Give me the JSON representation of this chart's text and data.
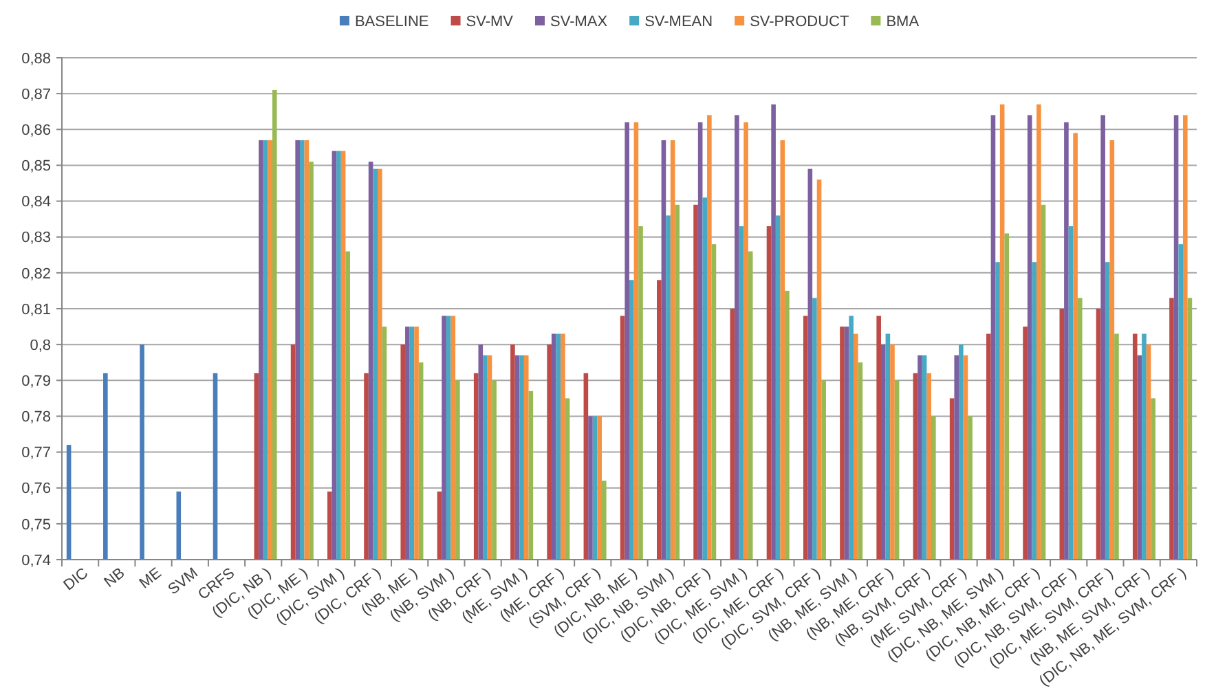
{
  "chart_data": {
    "type": "bar",
    "categories": [
      "DIC",
      "NB",
      "ME",
      "SVM",
      "CRFS",
      "(DIC, NB )",
      "(DIC, ME )",
      "(DIC, SVM )",
      "(DIC, CRF )",
      "(NB, ME )",
      "(NB, SVM )",
      "(NB, CRF )",
      "(ME, SVM )",
      "(ME, CRF )",
      "(SVM, CRF )",
      "(DIC, NB, ME )",
      "(DIC, NB, SVM )",
      "(DIC, NB, CRF )",
      "(DIC, ME, SVM )",
      "(DIC, ME, CRF )",
      "(DIC, SVM, CRF )",
      "(NB, ME, SVM )",
      "(NB, ME, CRF )",
      "(NB, SVM, CRF )",
      "(ME, SVM, CRF )",
      "(DIC, NB, ME, SVM )",
      "(DIC, NB, ME, CRF )",
      "(DIC, NB, SVM, CRF )",
      "(DIC, ME, SVM, CRF )",
      "(NB, ME, SVM, CRF )",
      "(DIC, NB, ME, SVM, CRF )"
    ],
    "series": [
      {
        "name": "BASELINE",
        "color": "#4a7ebb",
        "values": [
          0.772,
          0.792,
          0.8,
          0.759,
          0.792,
          null,
          null,
          null,
          null,
          null,
          null,
          null,
          null,
          null,
          null,
          null,
          null,
          null,
          null,
          null,
          null,
          null,
          null,
          null,
          null,
          null,
          null,
          null,
          null,
          null,
          null
        ]
      },
      {
        "name": "SV-MV",
        "color": "#be4b48",
        "values": [
          null,
          null,
          null,
          null,
          null,
          0.792,
          0.8,
          0.759,
          0.792,
          0.8,
          0.759,
          0.792,
          0.8,
          0.8,
          0.792,
          0.808,
          0.818,
          0.839,
          0.81,
          0.833,
          0.808,
          0.805,
          0.808,
          0.792,
          0.785,
          0.803,
          0.805,
          0.81,
          0.81,
          0.803,
          0.813
        ]
      },
      {
        "name": "SV-MAX",
        "color": "#7d60a0",
        "values": [
          null,
          null,
          null,
          null,
          null,
          0.857,
          0.857,
          0.854,
          0.851,
          0.805,
          0.808,
          0.8,
          0.797,
          0.803,
          0.78,
          0.862,
          0.857,
          0.862,
          0.864,
          0.867,
          0.849,
          0.805,
          0.8,
          0.797,
          0.797,
          0.864,
          0.864,
          0.862,
          0.864,
          0.797,
          0.864
        ]
      },
      {
        "name": "SV-MEAN",
        "color": "#46aac5",
        "values": [
          null,
          null,
          null,
          null,
          null,
          0.857,
          0.857,
          0.854,
          0.849,
          0.805,
          0.808,
          0.797,
          0.797,
          0.803,
          0.78,
          0.818,
          0.836,
          0.841,
          0.833,
          0.836,
          0.813,
          0.808,
          0.803,
          0.797,
          0.8,
          0.823,
          0.823,
          0.833,
          0.823,
          0.803,
          0.828
        ]
      },
      {
        "name": "SV-PRODUCT",
        "color": "#f69240",
        "values": [
          null,
          null,
          null,
          null,
          null,
          0.857,
          0.857,
          0.854,
          0.849,
          0.805,
          0.808,
          0.797,
          0.797,
          0.803,
          0.78,
          0.862,
          0.857,
          0.864,
          0.862,
          0.857,
          0.846,
          0.803,
          0.8,
          0.792,
          0.797,
          0.867,
          0.867,
          0.859,
          0.857,
          0.8,
          0.864
        ]
      },
      {
        "name": "BMA",
        "color": "#98b954",
        "values": [
          null,
          null,
          null,
          null,
          null,
          0.871,
          0.851,
          0.826,
          0.805,
          0.795,
          0.79,
          0.79,
          0.787,
          0.785,
          0.762,
          0.833,
          0.839,
          0.828,
          0.826,
          0.815,
          0.79,
          0.795,
          0.79,
          0.78,
          0.78,
          0.831,
          0.839,
          0.813,
          0.803,
          0.785,
          0.813
        ]
      }
    ],
    "ylim": [
      0.74,
      0.88
    ],
    "yticks": [
      {
        "value": 0.74,
        "label": "0,74"
      },
      {
        "value": 0.75,
        "label": "0,75"
      },
      {
        "value": 0.76,
        "label": "0,76"
      },
      {
        "value": 0.77,
        "label": "0,77"
      },
      {
        "value": 0.78,
        "label": "0,78"
      },
      {
        "value": 0.79,
        "label": "0,79"
      },
      {
        "value": 0.8,
        "label": "0,8"
      },
      {
        "value": 0.81,
        "label": "0,81"
      },
      {
        "value": 0.82,
        "label": "0,82"
      },
      {
        "value": 0.83,
        "label": "0,83"
      },
      {
        "value": 0.84,
        "label": "0,84"
      },
      {
        "value": 0.85,
        "label": "0,85"
      },
      {
        "value": 0.86,
        "label": "0,86"
      },
      {
        "value": 0.87,
        "label": "0,87"
      },
      {
        "value": 0.88,
        "label": "0,88"
      }
    ],
    "grid": "y",
    "legend": "top"
  }
}
